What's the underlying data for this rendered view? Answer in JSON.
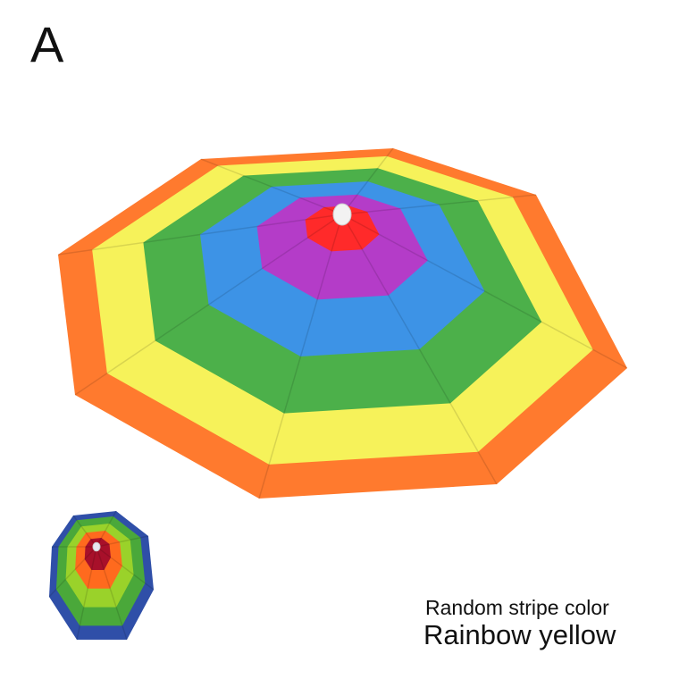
{
  "variant_label": "A",
  "caption": {
    "line1": "Random stripe color",
    "line2": "Rainbow yellow"
  },
  "main_umbrella": {
    "stripe_colors": [
      "#ff7a2e",
      "#f6f25a",
      "#4cb04a",
      "#3d93e6",
      "#b43cc8",
      "#ff2a2a"
    ],
    "knob_color": "#f2f2f2"
  },
  "thumbnail_umbrella": {
    "stripe_colors": [
      "#2f4fa8",
      "#4aa83a",
      "#9ad22a",
      "#ff6a1e",
      "#a8102a"
    ],
    "knob_color": "#e8e8f0"
  }
}
